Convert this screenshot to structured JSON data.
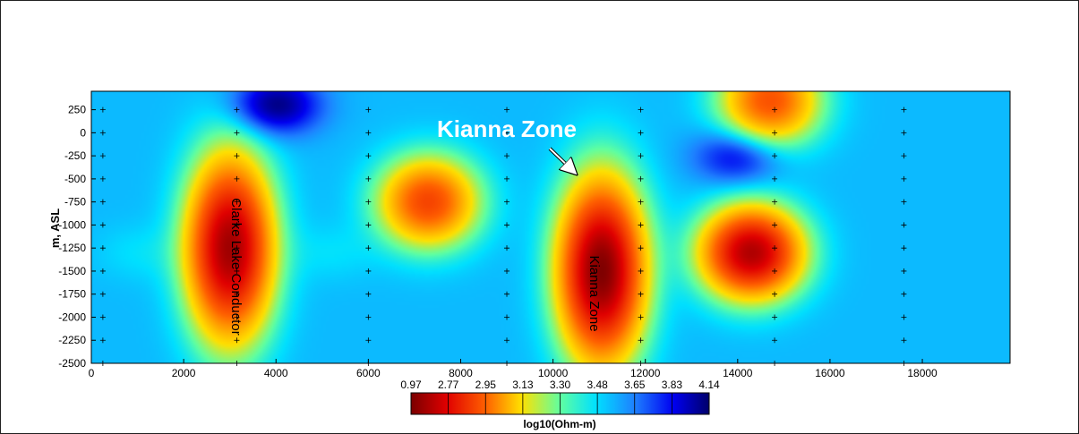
{
  "chart_data": {
    "type": "heatmap",
    "title": "",
    "xlabel": "",
    "ylabel": "m, ASL",
    "xlim": [
      0,
      19900
    ],
    "ylim": [
      -2500,
      450
    ],
    "x_ticks": [
      0,
      2000,
      4000,
      6000,
      8000,
      10000,
      12000,
      14000,
      16000,
      18000
    ],
    "y_ticks": [
      250,
      0,
      -250,
      -500,
      -750,
      -1000,
      -1250,
      -1500,
      -1750,
      -2000,
      -2250,
      -2500
    ],
    "colorbar": {
      "label": "log10(Ohm-m)",
      "ticks": [
        "0.97",
        "2.77",
        "2.95",
        "3.13",
        "3.30",
        "3.48",
        "3.65",
        "3.83",
        "4.14"
      ],
      "colors": [
        "#8b0000",
        "#ff0000",
        "#ff8c00",
        "#ffff00",
        "#00ffff",
        "#1e90ff",
        "#0000ff",
        "#00007f"
      ]
    },
    "station_lines_x": [
      250,
      3150,
      6000,
      9000,
      11900,
      14800,
      17600
    ],
    "background_value": 3.48,
    "conductors": [
      {
        "name": "Clarke Lake Conductor",
        "x": 3000,
        "y": -1250,
        "value": 1.2
      },
      {
        "name": "Kianna Zone",
        "x": 11050,
        "y": -1500,
        "value": 1.0
      },
      {
        "name": "",
        "x": 14300,
        "y": -1300,
        "value": 1.3
      },
      {
        "name": "",
        "x": 7300,
        "y": -750,
        "value": 2.1
      },
      {
        "name": "",
        "x": 14700,
        "y": 350,
        "value": 2.2
      }
    ],
    "resistive_zones": [
      {
        "x": 1000,
        "y": -1300,
        "value": 3.4
      },
      {
        "x": 5200,
        "y": -1300,
        "value": 3.4
      },
      {
        "x": 14000,
        "y": -250,
        "value": 3.9
      },
      {
        "x": 4000,
        "y": 300,
        "value": 4.1
      }
    ],
    "annotations": {
      "kianna_title": "Kianna Zone",
      "clarke_label": "Clarke Lake Conductor",
      "kianna_label": "Kianna Zone"
    }
  }
}
